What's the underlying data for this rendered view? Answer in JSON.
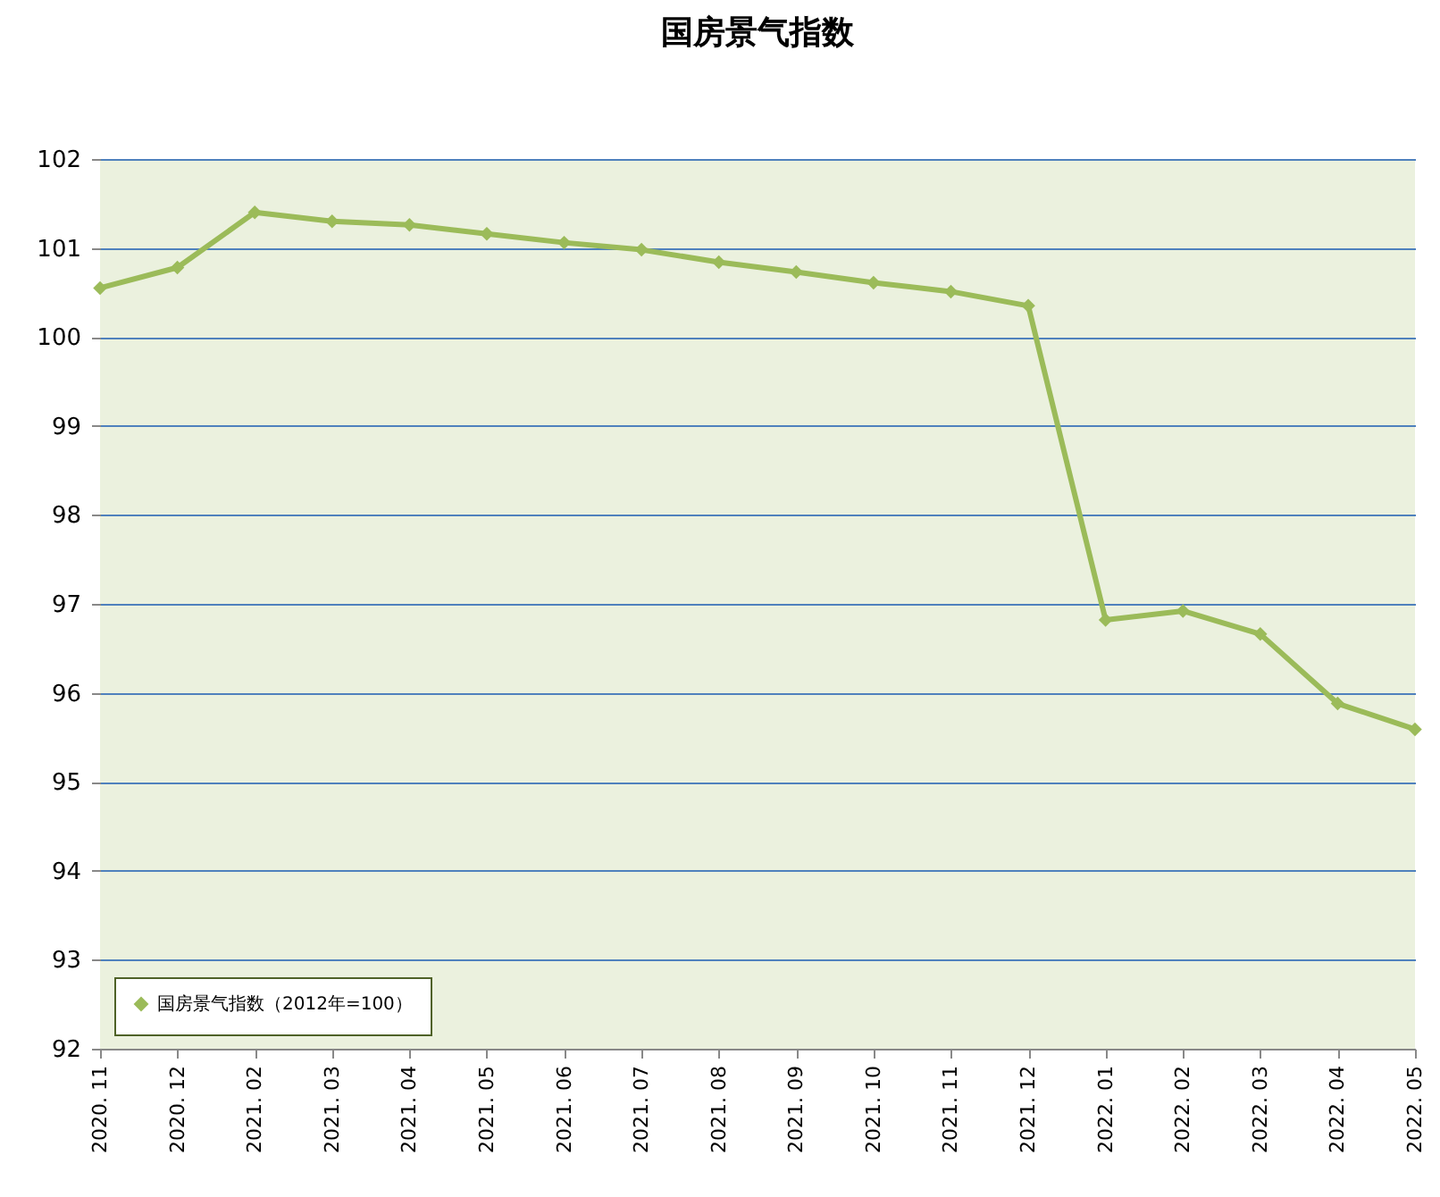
{
  "chart_data": {
    "type": "line",
    "title": "国房景气指数",
    "categories": [
      "2020. 11",
      "2020. 12",
      "2021. 02",
      "2021. 03",
      "2021. 04",
      "2021. 05",
      "2021. 06",
      "2021. 07",
      "2021. 08",
      "2021. 09",
      "2021. 10",
      "2021. 11",
      "2021. 12",
      "2022. 01",
      "2022. 02",
      "2022. 03",
      "2022. 04",
      "2022. 05"
    ],
    "series": [
      {
        "name": "国房景气指数（2012年=100）",
        "color": "#9bbb59",
        "values": [
          100.55,
          100.78,
          101.4,
          101.3,
          101.26,
          101.16,
          101.06,
          100.98,
          100.84,
          100.73,
          100.61,
          100.51,
          100.35,
          96.82,
          96.92,
          96.66,
          95.88,
          95.59
        ]
      }
    ],
    "ylim": [
      92,
      102
    ],
    "yticks": [
      92,
      93,
      94,
      95,
      96,
      97,
      98,
      99,
      100,
      101,
      102
    ],
    "grid": "y",
    "legend": "bottom left",
    "marker": "diamond",
    "line_style": "solid"
  }
}
